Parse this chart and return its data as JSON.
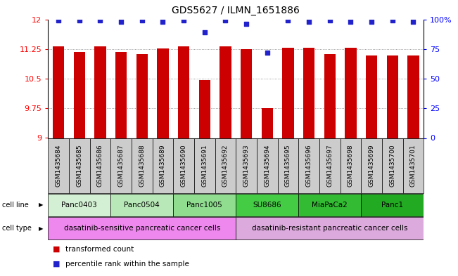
{
  "title": "GDS5627 / ILMN_1651886",
  "samples": [
    "GSM1435684",
    "GSM1435685",
    "GSM1435686",
    "GSM1435687",
    "GSM1435688",
    "GSM1435689",
    "GSM1435690",
    "GSM1435691",
    "GSM1435692",
    "GSM1435693",
    "GSM1435694",
    "GSM1435695",
    "GSM1435696",
    "GSM1435697",
    "GSM1435698",
    "GSM1435699",
    "GSM1435700",
    "GSM1435701"
  ],
  "bar_values": [
    11.32,
    11.18,
    11.31,
    11.17,
    11.13,
    11.27,
    11.31,
    10.47,
    11.31,
    11.25,
    9.76,
    11.28,
    11.28,
    11.13,
    11.28,
    11.09,
    11.08,
    11.08
  ],
  "percentile_values": [
    99,
    99,
    99,
    98,
    99,
    98,
    99,
    89,
    99,
    96,
    72,
    99,
    98,
    99,
    98,
    98,
    99,
    98
  ],
  "ylim_left": [
    9,
    12
  ],
  "ylim_right": [
    0,
    100
  ],
  "yticks_left": [
    9,
    9.75,
    10.5,
    11.25,
    12
  ],
  "yticks_right": [
    0,
    25,
    50,
    75,
    100
  ],
  "bar_color": "#cc0000",
  "dot_color": "#2222cc",
  "cell_lines": [
    {
      "name": "Panc0403",
      "start": 0,
      "end": 3,
      "color": "#d4f0d4"
    },
    {
      "name": "Panc0504",
      "start": 3,
      "end": 6,
      "color": "#b8e8b8"
    },
    {
      "name": "Panc1005",
      "start": 6,
      "end": 9,
      "color": "#90dd90"
    },
    {
      "name": "SU8686",
      "start": 9,
      "end": 12,
      "color": "#44cc44"
    },
    {
      "name": "MiaPaCa2",
      "start": 12,
      "end": 15,
      "color": "#33bb33"
    },
    {
      "name": "Panc1",
      "start": 15,
      "end": 18,
      "color": "#22aa22"
    }
  ],
  "cell_types": [
    {
      "name": "dasatinib-sensitive pancreatic cancer cells",
      "start": 0,
      "end": 9,
      "color": "#ee88ee"
    },
    {
      "name": "dasatinib-resistant pancreatic cancer cells",
      "start": 9,
      "end": 18,
      "color": "#ddaadd"
    }
  ],
  "legend_bar_label": "transformed count",
  "legend_dot_label": "percentile rank within the sample",
  "gsm_box_color": "#cccccc",
  "grid_color": "#888888",
  "spine_color": "#000000"
}
